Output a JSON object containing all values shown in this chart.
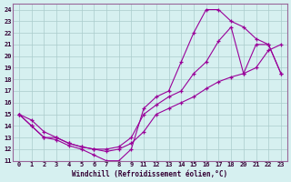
{
  "xlabel": "Windchill (Refroidissement éolien,°C)",
  "background_color": "#d6f0f0",
  "line_color": "#990099",
  "marker": "+",
  "grid_color": "#aacccc",
  "xlim": [
    -0.5,
    21.5
  ],
  "ylim": [
    11,
    24.5
  ],
  "xtick_labels": [
    "0",
    "1",
    "2",
    "3",
    "4",
    "5",
    "6",
    "7",
    "8",
    "9",
    "11",
    "12",
    "13",
    "14",
    "15",
    "16",
    "17",
    "18",
    "20",
    "21",
    "22",
    "23"
  ],
  "ytick_labels": [
    "11",
    "12",
    "13",
    "14",
    "15",
    "16",
    "17",
    "18",
    "19",
    "20",
    "21",
    "22",
    "23",
    "24"
  ],
  "ytick_positions": [
    11,
    12,
    13,
    14,
    15,
    16,
    17,
    18,
    19,
    20,
    21,
    22,
    23,
    24
  ],
  "curves": [
    {
      "xi": [
        0,
        1,
        2,
        3,
        4,
        5,
        6,
        7,
        8,
        9,
        10,
        11,
        12,
        13,
        14,
        15,
        16,
        17,
        18,
        19,
        20,
        21
      ],
      "y": [
        15,
        14,
        13,
        13,
        12.5,
        12.2,
        12,
        11.8,
        12,
        12.5,
        13.5,
        15,
        15.5,
        16,
        16.5,
        17.2,
        17.8,
        18.2,
        18.5,
        19,
        20.5,
        21
      ]
    },
    {
      "xi": [
        0,
        1,
        2,
        3,
        4,
        5,
        6,
        7,
        8,
        9,
        10,
        11,
        12,
        13,
        14,
        15,
        16,
        17,
        18,
        19,
        20,
        21
      ],
      "y": [
        15,
        14,
        13,
        12.8,
        12.3,
        12,
        11.5,
        11,
        11,
        12,
        15.5,
        16.5,
        17,
        19.5,
        22,
        24,
        24,
        23,
        22.5,
        21.5,
        21,
        18.5
      ]
    },
    {
      "xi": [
        0,
        1,
        2,
        3,
        4,
        5,
        6,
        7,
        8,
        9,
        10,
        11,
        12,
        13,
        14,
        15,
        16,
        17,
        18,
        19,
        20,
        21
      ],
      "y": [
        15,
        14.5,
        13.5,
        13,
        12.5,
        12.2,
        12,
        12,
        12.2,
        13,
        15,
        15.8,
        16.5,
        17,
        18.5,
        19.5,
        21.3,
        22.5,
        18.5,
        21,
        21,
        18.5
      ]
    }
  ]
}
